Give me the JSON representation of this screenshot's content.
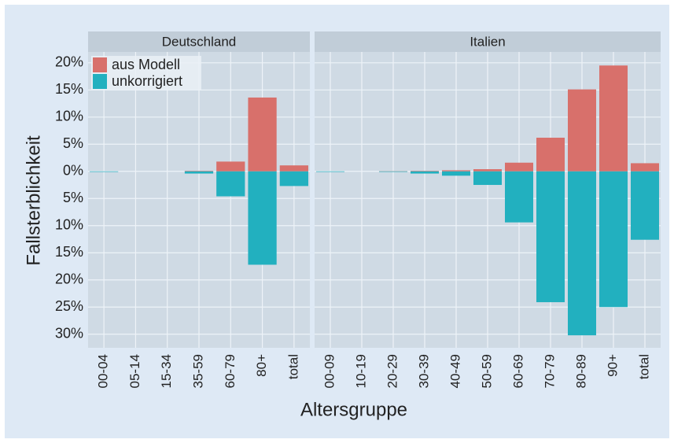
{
  "chart_data": {
    "type": "bar",
    "x_label": "Altersgruppe",
    "y_label": "Fallsterblichkeit",
    "ylim": [
      -32.5,
      22
    ],
    "yticks": [
      {
        "value": 20,
        "label": "20%"
      },
      {
        "value": 15,
        "label": "15%"
      },
      {
        "value": 10,
        "label": "10%"
      },
      {
        "value": 5,
        "label": "5%"
      },
      {
        "value": 0,
        "label": "0%"
      },
      {
        "value": -5,
        "label": "5%"
      },
      {
        "value": -10,
        "label": "10%"
      },
      {
        "value": -15,
        "label": "15%"
      },
      {
        "value": -20,
        "label": "20%"
      },
      {
        "value": -25,
        "label": "25%"
      },
      {
        "value": -30,
        "label": "30%"
      }
    ],
    "grid": true,
    "legend_position": "top-left",
    "series": [
      {
        "name": "aus Modell",
        "color": "#d8706b"
      },
      {
        "name": "unkorrigiert",
        "color": "#22b0bf"
      }
    ],
    "panels": [
      {
        "title": "Deutschland",
        "categories": [
          "00-04",
          "05-14",
          "15-34",
          "35-59",
          "60-79",
          "80+",
          "total"
        ],
        "series": [
          {
            "values": [
              0,
              0,
              0,
              0.1,
              1.8,
              13.6,
              1.1
            ]
          },
          {
            "values": [
              -0.1,
              0,
              0,
              -0.4,
              -4.6,
              -17.2,
              -2.7
            ]
          }
        ]
      },
      {
        "title": "Italien",
        "categories": [
          "00-09",
          "10-19",
          "20-29",
          "30-39",
          "40-49",
          "50-59",
          "60-69",
          "70-79",
          "80-89",
          "90+",
          "total"
        ],
        "series": [
          {
            "values": [
              0,
              0,
              0.05,
              0.1,
              0.2,
              0.4,
              1.6,
              6.2,
              15.1,
              19.5,
              1.5
            ]
          },
          {
            "values": [
              -0.1,
              0,
              -0.1,
              -0.4,
              -0.8,
              -2.5,
              -9.4,
              -24.1,
              -30.2,
              -25.0,
              -12.6
            ]
          }
        ]
      }
    ]
  }
}
